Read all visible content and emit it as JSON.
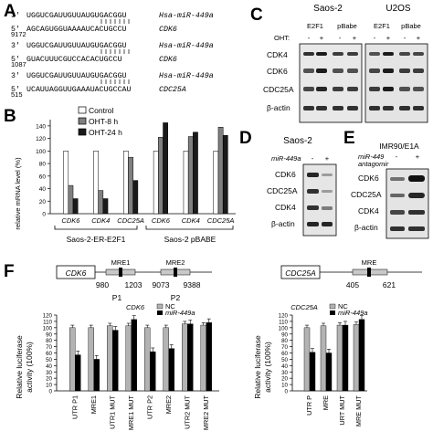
{
  "panels": {
    "a": "A",
    "b": "B",
    "c": "C",
    "d": "D",
    "e": "E",
    "f": "F"
  },
  "panel_a": {
    "pairs": [
      {
        "mir_prefix": "3'",
        "mir_seq": "UGGUCGAUUGUUAUGUGACGGU",
        "mir_name": "Hsa-miR-449a",
        "target_prefix": "5'",
        "target_pos": "9172",
        "target_seq": "AGCAGUGGUAAAAUCACUGCCU",
        "target_name": "CDK6"
      },
      {
        "mir_prefix": "3'",
        "mir_seq": "UGGUCGAUUGUUAUGUGACGGU",
        "mir_name": "Hsa-miR-449a",
        "target_prefix": "5'",
        "target_pos": "1087",
        "target_seq": "GUACUUUCGUCCACACUGCCU",
        "target_name": "CDK6"
      },
      {
        "mir_prefix": "3'",
        "mir_seq": "UGGUCGAUUGUUAUGUGACGGU",
        "mir_name": "Hsa-miR-449a",
        "target_prefix": "5'",
        "target_pos": "515",
        "target_seq": "UCAUUAGGUUGAAAUACUGCCAU",
        "target_name": "CDC25A"
      }
    ]
  },
  "panel_b": {
    "ylabel": "relative mRNA level (%)",
    "group_labels": [
      "Saos-2-ER-E2F1",
      "Saos-2 pBABE"
    ],
    "legend": [
      "Control",
      "OHT-8 h",
      "OHT-24 h"
    ],
    "colors": [
      "#ffffff",
      "#808080",
      "#1a1a1a"
    ]
  },
  "panel_c": {
    "cell_lines": [
      "Saos-2",
      "U2OS"
    ],
    "conditions": [
      "E2F1",
      "pBabe",
      "E2F1",
      "pBabe"
    ],
    "oht_label": "OHT:",
    "signs": [
      "-",
      "+",
      "-",
      "+",
      "-",
      "+",
      "-",
      "+"
    ],
    "rows": [
      "CDK4",
      "CDK6",
      "CDC25A",
      "β-actin"
    ]
  },
  "panel_d": {
    "title": "Saos-2",
    "treatment": "miR-449a",
    "signs": [
      "-",
      "+"
    ],
    "rows": [
      "CDK6",
      "CDC25A",
      "CDK4",
      "β-actin"
    ]
  },
  "panel_e": {
    "title": "IMR90/E1A",
    "treatment_line1": "miR-449",
    "treatment_line2": "antagomir",
    "signs": [
      "-",
      "+"
    ],
    "rows": [
      "CDK6",
      "CDC25A",
      "CDK4",
      "β-actin"
    ]
  },
  "panel_f": {
    "cdk6_gene": "CDK6",
    "cdk6_mre1": "MRE1",
    "cdk6_mre2": "MRE2",
    "cdk6_pos": [
      "980",
      "1203",
      "9073",
      "9388"
    ],
    "cdk6_probes": [
      "P1",
      "P2"
    ],
    "cdc25a_gene": "CDC25A",
    "cdc25a_mre": "MRE",
    "cdc25a_pos": [
      "405",
      "621"
    ],
    "legend": [
      "NC",
      "miR-449a"
    ],
    "ylabel_line1": "Relative luciferase",
    "ylabel_line2": "activity (100%)",
    "colors": [
      "#b3b3b3",
      "#000000"
    ]
  },
  "chart_data": [
    {
      "type": "bar",
      "title": "",
      "xlabel": "",
      "ylabel": "relative mRNA level (%)",
      "ylim": [
        0,
        150
      ],
      "yticks": [
        0,
        20,
        40,
        60,
        80,
        100,
        120,
        140
      ],
      "categories": [
        "CDK6",
        "CDK4",
        "CDC25A",
        "CDK6",
        "CDK4",
        "CDC25A"
      ],
      "series": [
        {
          "name": "Control",
          "values": [
            100,
            100,
            100,
            100,
            100,
            100
          ]
        },
        {
          "name": "OHT-8 h",
          "values": [
            45,
            37,
            90,
            122,
            123,
            138
          ]
        },
        {
          "name": "OHT-24 h",
          "values": [
            24,
            24,
            53,
            145,
            130,
            125
          ]
        }
      ]
    },
    {
      "type": "bar",
      "title": "CDK6",
      "ylabel": "Relative luciferase activity (100%)",
      "ylim": [
        0,
        120
      ],
      "yticks": [
        0,
        10,
        20,
        30,
        40,
        50,
        60,
        70,
        80,
        90,
        100,
        110,
        120
      ],
      "categories": [
        "UTR P1",
        "MRE1",
        "UTR1 MUT",
        "MRE1 MUT",
        "UTR P2",
        "MRE2",
        "UTR2 MUT",
        "MRE2 MUT"
      ],
      "series": [
        {
          "name": "NC",
          "values": [
            100,
            100,
            103,
            103,
            100,
            100,
            106,
            104
          ]
        },
        {
          "name": "miR-449a",
          "values": [
            57,
            50,
            96,
            113,
            62,
            67,
            106,
            108
          ]
        }
      ]
    },
    {
      "type": "bar",
      "title": "CDC25A",
      "ylabel": "Relative luciferase activity (100%)",
      "ylim": [
        0,
        120
      ],
      "yticks": [
        0,
        10,
        20,
        30,
        40,
        50,
        60,
        70,
        80,
        90,
        100,
        110,
        120
      ],
      "categories": [
        "UTR P",
        "MRE",
        "URT MUT",
        "MRE MUT"
      ],
      "series": [
        {
          "name": "NC",
          "values": [
            100,
            103,
            104,
            105
          ]
        },
        {
          "name": "miR-449a",
          "values": [
            61,
            60,
            104,
            113
          ]
        }
      ]
    }
  ]
}
